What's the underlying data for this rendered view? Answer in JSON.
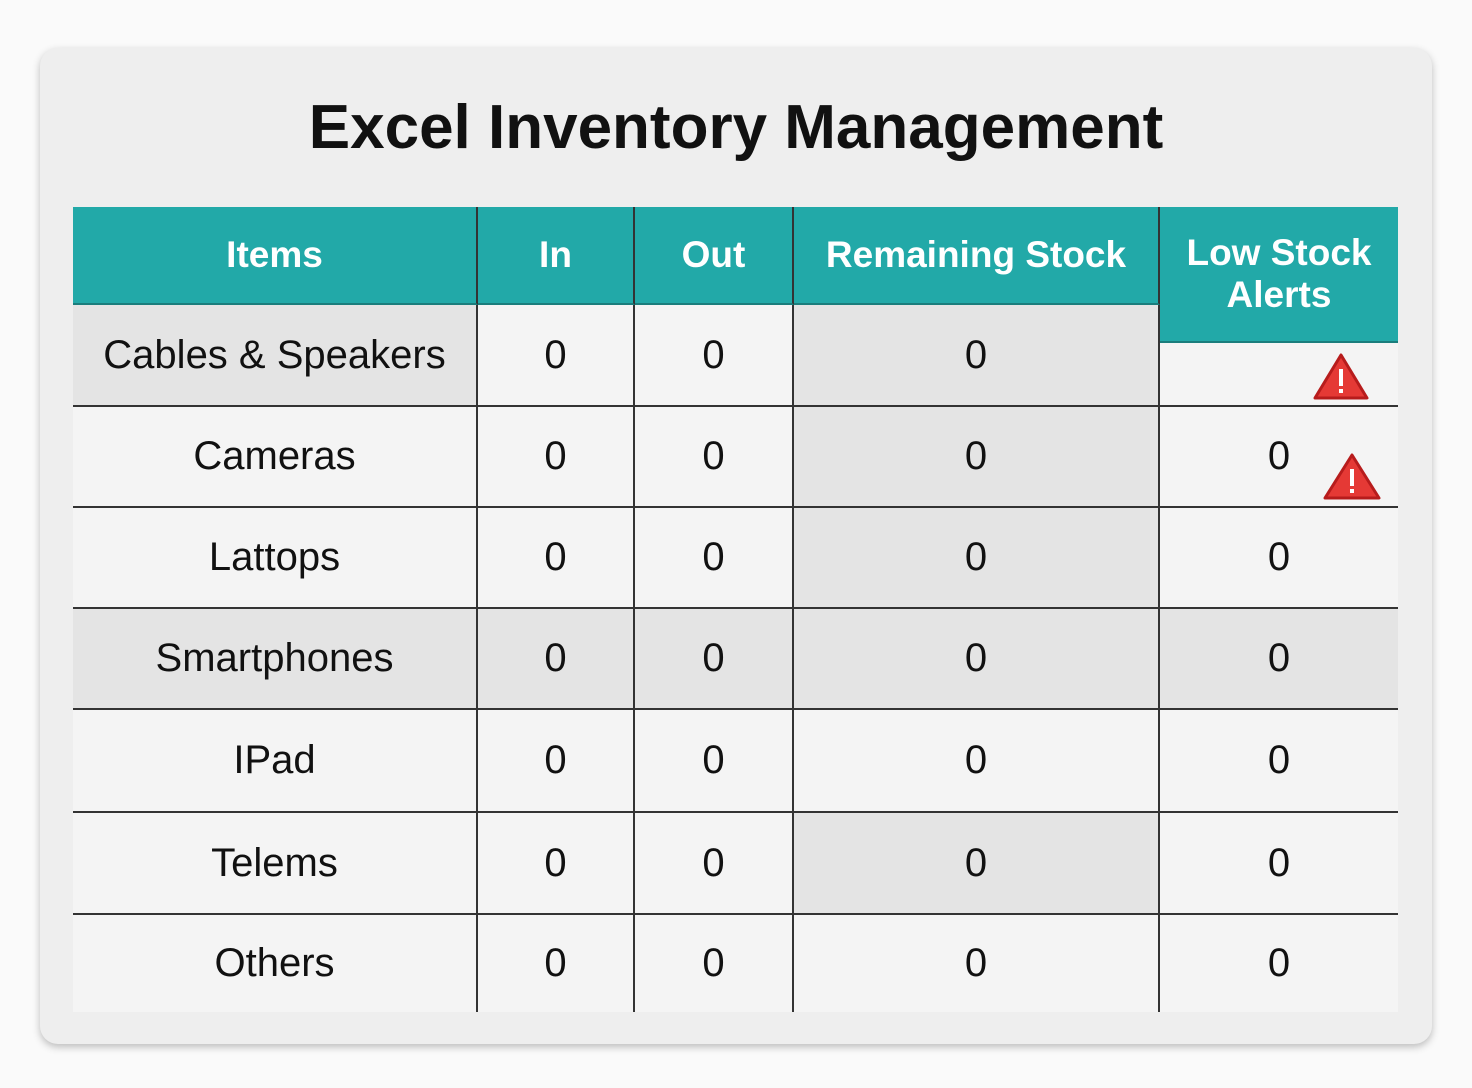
{
  "header": {
    "title": "Excel Inventory Management"
  },
  "table": {
    "columns": [
      "Items",
      "In",
      "Out",
      "Remaining Stock",
      "Low Stock Alerts"
    ],
    "rows": [
      {
        "item": "Cables & Speakers",
        "in": 0,
        "out": 0,
        "remaining": 0
      },
      {
        "item": "Cameras",
        "in": 0,
        "out": 0,
        "remaining": 0,
        "alert": 0
      },
      {
        "item": "Lattops",
        "in": 0,
        "out": 0,
        "remaining": 0,
        "alert": 0
      },
      {
        "item": "Smartphones",
        "in": 0,
        "out": 0,
        "remaining": 0,
        "alert": 0
      },
      {
        "item": "IPad",
        "in": 0,
        "out": 0,
        "remaining": 0,
        "alert": 0
      },
      {
        "item": "Telems",
        "in": 0,
        "out": 0,
        "remaining": 0,
        "alert": 0
      },
      {
        "item": "Others",
        "in": 0,
        "out": 0,
        "remaining": 0,
        "alert": 0
      }
    ]
  }
}
